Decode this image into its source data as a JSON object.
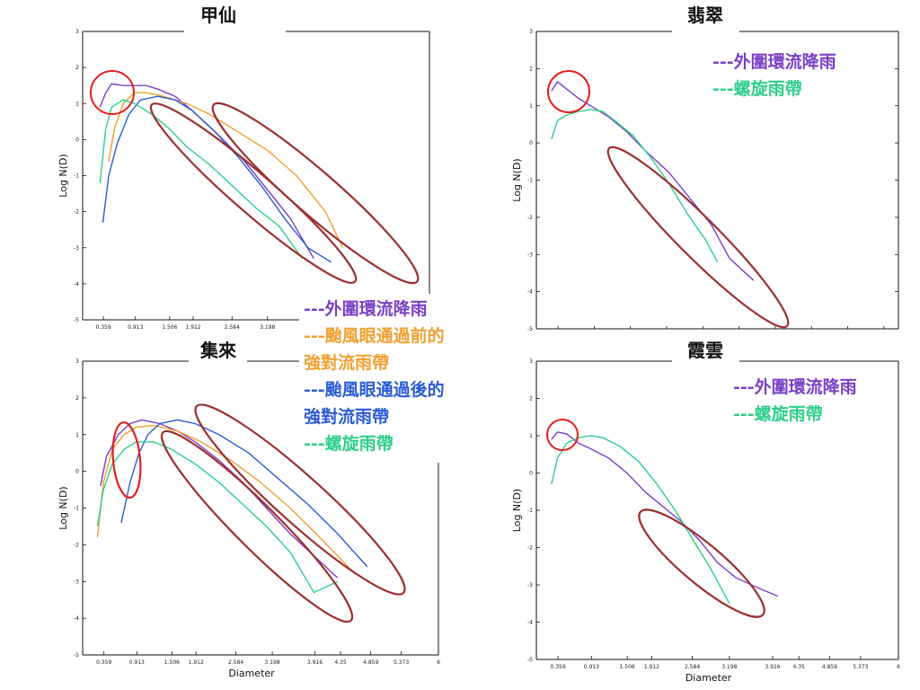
{
  "colors": {
    "outer": "#7a3fc6",
    "before": "#f0a030",
    "after": "#2a5bd7",
    "spiral": "#2ecf8a",
    "highlight_circle": "#e02020",
    "highlight_ellipse": "#9b3030"
  },
  "legend_labels": {
    "outer": "---外圍環流降雨",
    "outer3": "----外圍環流降雨",
    "before": "---颱風眼通過前的",
    "before_cont": "強對流雨帶",
    "after": "---颱風眼通過後的",
    "after_cont": "強對流雨帶",
    "spiral": "---螺旋雨帶",
    "spiral3": "----螺旋雨帶"
  },
  "axis_labels": {
    "x": "Diameter",
    "y": "Log N(D)"
  },
  "chart_data": [
    {
      "type": "line",
      "title": "甲仙",
      "ylim": [
        -5,
        3
      ],
      "xlim": [
        0,
        6
      ],
      "y_ticks": [
        "-5",
        "-4",
        "-3",
        "-2",
        "-1",
        "0",
        "1",
        "2",
        "3"
      ],
      "x_tick_values": [
        0.359,
        0.913,
        1.506,
        1.912,
        2.584,
        3.198
      ],
      "x_tick_labels": [
        "0.359",
        "0.913",
        "1.506",
        "1.912",
        "2.584",
        "3.198"
      ],
      "series": [
        {
          "name": "外圍環流降雨",
          "color_key": "outer",
          "x": [
            0.3,
            0.4,
            0.5,
            0.7,
            0.9,
            1.1,
            1.3,
            1.6,
            1.9,
            2.3,
            2.8,
            3.2,
            3.6,
            4.0
          ],
          "y": [
            0.9,
            1.3,
            1.55,
            1.5,
            1.5,
            1.5,
            1.4,
            1.2,
            0.8,
            0.2,
            -0.6,
            -1.4,
            -2.2,
            -3.3
          ]
        },
        {
          "name": "颱風眼通過前的強對流雨帶",
          "color_key": "before",
          "x": [
            0.45,
            0.55,
            0.7,
            0.9,
            1.1,
            1.4,
            1.8,
            2.2,
            2.7,
            3.2,
            3.7,
            4.2,
            4.5
          ],
          "y": [
            -0.6,
            0.3,
            1.0,
            1.3,
            1.3,
            1.2,
            1.0,
            0.7,
            0.2,
            -0.3,
            -1.0,
            -2.0,
            -3.0
          ]
        },
        {
          "name": "颱風眼通過後的強對流雨帶",
          "color_key": "after",
          "x": [
            0.35,
            0.45,
            0.6,
            0.8,
            1.0,
            1.3,
            1.6,
            1.9,
            2.3,
            2.7,
            3.1,
            3.5,
            3.9,
            4.3
          ],
          "y": [
            -2.3,
            -1.0,
            -0.1,
            0.7,
            1.1,
            1.2,
            1.1,
            0.8,
            0.2,
            -0.5,
            -1.3,
            -2.2,
            -3.0,
            -3.4
          ]
        },
        {
          "name": "螺旋雨帶",
          "color_key": "spiral",
          "x": [
            0.3,
            0.4,
            0.5,
            0.7,
            0.9,
            1.2,
            1.5,
            1.8,
            2.2,
            2.6,
            3.0,
            3.4,
            3.8
          ],
          "y": [
            -1.2,
            0.3,
            0.9,
            1.1,
            1.0,
            0.7,
            0.3,
            -0.2,
            -0.7,
            -1.3,
            -1.9,
            -2.4,
            -3.3
          ]
        }
      ]
    },
    {
      "type": "line",
      "title": "翡翠",
      "ylim": [
        -5,
        3
      ],
      "xlim": [
        0,
        6
      ],
      "y_ticks": [
        "-5",
        "-4",
        "-3",
        "-2",
        "-1",
        "0",
        "1",
        "2",
        "3"
      ],
      "x_tick_values": [],
      "x_tick_labels": [],
      "series": [
        {
          "name": "外圍環流降雨",
          "color_key": "outer",
          "x": [
            0.25,
            0.35,
            0.5,
            0.7,
            0.9,
            1.2,
            1.5,
            1.8,
            2.2,
            2.6,
            2.9,
            3.2,
            3.6
          ],
          "y": [
            1.4,
            1.65,
            1.45,
            1.2,
            1.0,
            0.7,
            0.3,
            -0.2,
            -0.8,
            -1.6,
            -2.2,
            -3.1,
            -3.7
          ]
        },
        {
          "name": "螺旋雨帶",
          "color_key": "spiral",
          "x": [
            0.25,
            0.35,
            0.5,
            0.7,
            0.9,
            1.1,
            1.3,
            1.6,
            1.9,
            2.2,
            2.5,
            2.8,
            3.0
          ],
          "y": [
            0.1,
            0.6,
            0.75,
            0.85,
            0.9,
            0.85,
            0.6,
            0.2,
            -0.4,
            -1.1,
            -1.9,
            -2.6,
            -3.2
          ]
        }
      ]
    },
    {
      "type": "line",
      "title": "集來",
      "ylim": [
        -5,
        3
      ],
      "xlim": [
        0,
        6
      ],
      "y_ticks": [
        "-5",
        "-4",
        "-3",
        "-2",
        "-1",
        "0",
        "1",
        "2",
        "3"
      ],
      "x_tick_values": [
        0.359,
        0.913,
        1.506,
        1.912,
        2.584,
        3.198,
        3.916,
        4.35,
        4.859,
        5.373,
        6
      ],
      "x_tick_labels": [
        "0.359",
        "0.913",
        "1.506",
        "1.912",
        "2.584",
        "3.198",
        "3.916",
        "4.35",
        "4.859",
        "5.373",
        "6"
      ],
      "series": [
        {
          "name": "外圍環流降雨",
          "color_key": "outer",
          "x": [
            0.3,
            0.4,
            0.6,
            0.8,
            1.0,
            1.3,
            1.6,
            1.9,
            2.3,
            2.7,
            3.1,
            3.5,
            3.9,
            4.3
          ],
          "y": [
            -0.4,
            0.4,
            1.0,
            1.3,
            1.4,
            1.3,
            1.1,
            0.8,
            0.3,
            -0.3,
            -1.0,
            -1.7,
            -2.3,
            -2.9
          ]
        },
        {
          "name": "颱風眼通過前的強對流雨帶",
          "color_key": "before",
          "x": [
            0.25,
            0.35,
            0.5,
            0.7,
            0.9,
            1.2,
            1.6,
            2.0,
            2.5,
            3.0,
            3.5,
            4.0,
            4.6
          ],
          "y": [
            -1.8,
            -0.3,
            0.6,
            1.0,
            1.2,
            1.25,
            1.1,
            0.8,
            0.3,
            -0.3,
            -1.0,
            -1.8,
            -2.8
          ]
        },
        {
          "name": "颱風眼通過後的強對流雨帶",
          "color_key": "after",
          "x": [
            0.65,
            0.8,
            0.95,
            1.1,
            1.3,
            1.6,
            1.9,
            2.3,
            2.8,
            3.3,
            3.8,
            4.3,
            4.8
          ],
          "y": [
            -1.4,
            -0.3,
            0.5,
            1.0,
            1.3,
            1.4,
            1.3,
            1.0,
            0.5,
            -0.2,
            -0.9,
            -1.7,
            -2.6
          ]
        },
        {
          "name": "螺旋雨帶",
          "color_key": "spiral",
          "x": [
            0.25,
            0.35,
            0.5,
            0.7,
            0.9,
            1.2,
            1.5,
            1.9,
            2.3,
            2.7,
            3.1,
            3.5,
            3.9,
            4.3
          ],
          "y": [
            -1.5,
            -0.5,
            0.2,
            0.6,
            0.8,
            0.8,
            0.6,
            0.2,
            -0.3,
            -0.9,
            -1.5,
            -2.2,
            -3.3,
            -3.0
          ]
        }
      ]
    },
    {
      "type": "line",
      "title": "霞雲",
      "ylim": [
        -5,
        3
      ],
      "xlim": [
        0,
        6
      ],
      "y_ticks": [
        "-5",
        "-4",
        "-3",
        "-2",
        "-1",
        "0",
        "1",
        "2",
        "3"
      ],
      "x_tick_values": [
        0.359,
        0.913,
        1.506,
        1.912,
        2.584,
        3.198,
        3.916,
        4.35,
        4.859,
        5.373,
        6
      ],
      "x_tick_labels": [
        "0.359",
        "0.913",
        "1.506",
        "1.912",
        "2.584",
        "3.198",
        "3.916",
        "4.35",
        "4.859",
        "5.373",
        "6"
      ],
      "series": [
        {
          "name": "外圍環流降雨",
          "color_key": "outer",
          "x": [
            0.25,
            0.35,
            0.5,
            0.7,
            0.9,
            1.2,
            1.5,
            1.8,
            2.1,
            2.4,
            2.7,
            3.0,
            3.3,
            3.7,
            4.0
          ],
          "y": [
            0.9,
            1.1,
            1.05,
            0.8,
            0.65,
            0.4,
            0.0,
            -0.5,
            -0.9,
            -1.3,
            -1.8,
            -2.4,
            -2.8,
            -3.1,
            -3.3
          ]
        },
        {
          "name": "螺旋雨帶",
          "color_key": "spiral",
          "x": [
            0.25,
            0.35,
            0.5,
            0.7,
            0.9,
            1.1,
            1.4,
            1.7,
            2.0,
            2.3,
            2.6,
            2.9,
            3.2
          ],
          "y": [
            -0.3,
            0.4,
            0.8,
            0.95,
            1.0,
            0.95,
            0.7,
            0.3,
            -0.3,
            -1.0,
            -1.8,
            -2.6,
            -3.5
          ]
        }
      ]
    }
  ]
}
